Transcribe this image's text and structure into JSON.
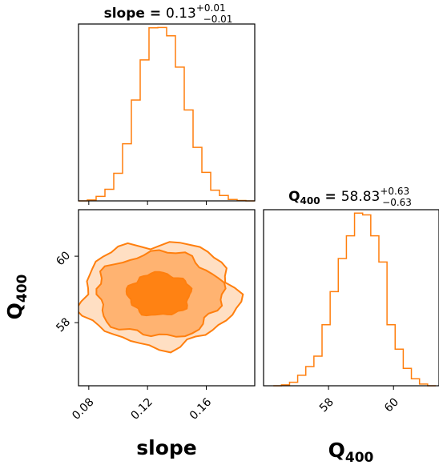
{
  "chart_data": {
    "type": "corner",
    "color": "#ff7f0e",
    "parameters": [
      {
        "name": "slope",
        "title_name": "slope",
        "title_value": "0.13",
        "title_plus": "+0.01",
        "title_minus": "−0.01",
        "range": [
          0.073,
          0.193
        ],
        "ticks": [
          0.08,
          0.12,
          0.16
        ],
        "tick_labels": [
          "0.08",
          "0.12",
          "0.16"
        ],
        "histogram": {
          "bin_edges": [
            0.073,
            0.079,
            0.085,
            0.091,
            0.097,
            0.103,
            0.109,
            0.115,
            0.121,
            0.127,
            0.133,
            0.139,
            0.145,
            0.151,
            0.157,
            0.163,
            0.169,
            0.175,
            0.181,
            0.187,
            0.193
          ],
          "counts": [
            0.0,
            0.5,
            2.5,
            6.5,
            15.5,
            32.0,
            56.5,
            79.0,
            97.0,
            97.2,
            92.5,
            75.0,
            51.0,
            30.0,
            16.0,
            6.0,
            3.0,
            0.8,
            0.2,
            0.0
          ]
        }
      },
      {
        "name": "Q",
        "name_sub": "400",
        "title_name": "Q",
        "title_sub": "400",
        "title_value": "58.83",
        "title_plus": "+0.63",
        "title_minus": "−0.63",
        "range": [
          56.0,
          61.4
        ],
        "ticks": [
          58,
          60
        ],
        "tick_labels": [
          "58",
          "60"
        ],
        "histogram": {
          "bin_edges": [
            56.3,
            56.55,
            56.8,
            57.05,
            57.3,
            57.55,
            57.8,
            58.05,
            58.3,
            58.55,
            58.8,
            59.05,
            59.3,
            59.55,
            59.8,
            60.05,
            60.3,
            60.55,
            60.8,
            61.05,
            61.3
          ],
          "counts": [
            0.0,
            0.5,
            2.0,
            6.0,
            11.0,
            17.0,
            35.0,
            54.0,
            73.0,
            86.0,
            99.0,
            98.0,
            86.0,
            71.0,
            35.0,
            21.0,
            10.0,
            4.0,
            1.0,
            0.0
          ]
        }
      }
    ],
    "joint": {
      "x": "slope",
      "y": "Q",
      "y_range": [
        56.1,
        61.4
      ],
      "center": [
        0.128,
        58.85
      ],
      "contour_levels": [
        0.95,
        0.86,
        0.39
      ],
      "contour_sigma": [
        0.0215,
        0.64
      ]
    }
  }
}
